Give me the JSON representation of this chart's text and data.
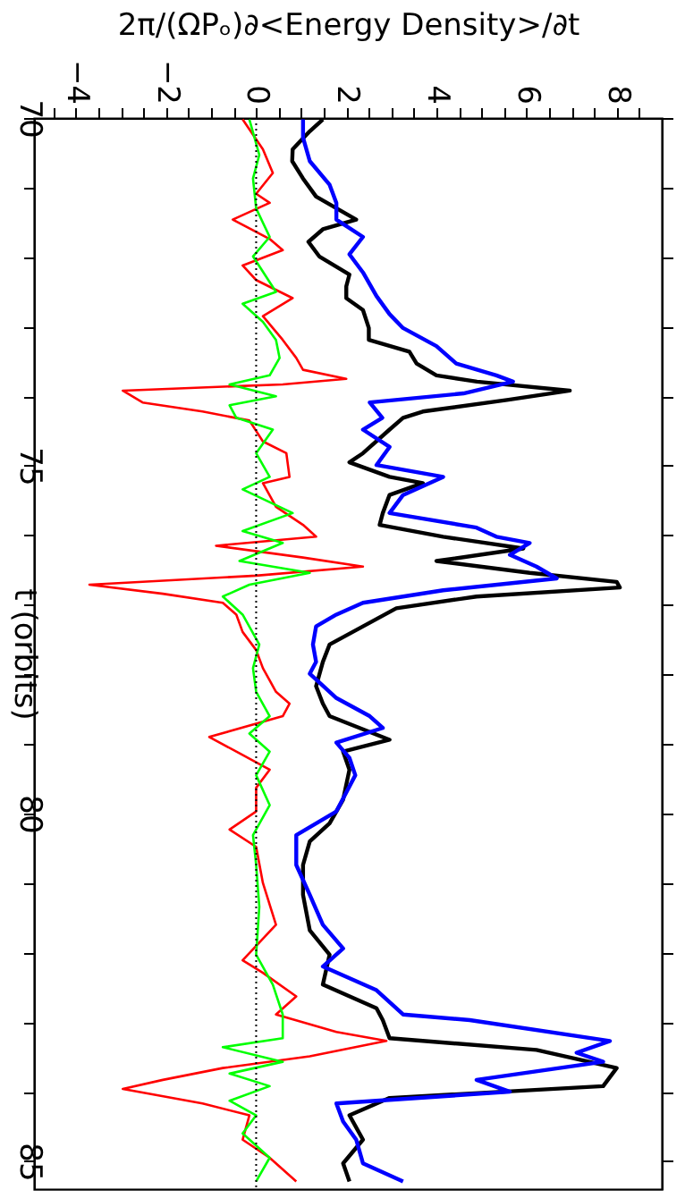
{
  "chart_data": {
    "type": "line",
    "orientation": "horizontal",
    "ylabel": "t (orbits)",
    "xlabel": "2π/(ΩPₒ)∂<Energy Density>/∂t",
    "ylim": [
      85.4,
      70
    ],
    "xlim": [
      -4.93,
      9.0
    ],
    "yticks": [
      70,
      {
        "value": 71,
        "label": null
      },
      {
        "value": 72,
        "label": null
      },
      {
        "value": 73,
        "label": null
      },
      {
        "value": 74,
        "label": null
      },
      75,
      {
        "value": 76,
        "label": null
      },
      {
        "value": 77,
        "label": null
      },
      {
        "value": 78,
        "label": null
      },
      {
        "value": 79,
        "label": null
      },
      80,
      {
        "value": 81,
        "label": null
      },
      {
        "value": 82,
        "label": null
      },
      {
        "value": 83,
        "label": null
      },
      {
        "value": 84,
        "label": null
      },
      85
    ],
    "xticks": [
      {
        "value": -4.5,
        "label": null
      },
      -4,
      {
        "value": -3.5,
        "label": null
      },
      {
        "value": -3,
        "label": null
      },
      {
        "value": -2.5,
        "label": null
      },
      -2,
      {
        "value": -1.5,
        "label": null
      },
      {
        "value": -1,
        "label": null
      },
      {
        "value": -0.5,
        "label": null
      },
      0,
      {
        "value": 0.5,
        "label": null
      },
      {
        "value": 1,
        "label": null
      },
      {
        "value": 1.5,
        "label": null
      },
      2,
      {
        "value": 2.5,
        "label": null
      },
      {
        "value": 3,
        "label": null
      },
      {
        "value": 3.5,
        "label": null
      },
      4,
      {
        "value": 4.5,
        "label": null
      },
      {
        "value": 5,
        "label": null
      },
      {
        "value": 5.5,
        "label": null
      },
      6,
      {
        "value": 6.5,
        "label": null
      },
      {
        "value": 7,
        "label": null
      },
      {
        "value": 7.5,
        "label": null
      },
      8,
      {
        "value": 8.5,
        "label": null
      }
    ],
    "grid": false,
    "legend": false,
    "ref_lines": [
      {
        "axis": "x",
        "value": 0,
        "color": "#000000",
        "line_style": "dotted"
      }
    ],
    "series": [
      {
        "color": "#000000",
        "x": [
          70.02,
          70.19,
          70.45,
          70.62,
          70.87,
          71.13,
          71.46,
          71.6,
          71.78,
          71.99,
          72.25,
          72.42,
          72.59,
          72.76,
          73.02,
          73.19,
          73.36,
          73.53,
          73.7,
          73.79,
          73.92,
          74.05,
          74.22,
          74.31,
          74.48,
          74.82,
          74.95,
          75.16,
          75.25,
          75.42,
          75.68,
          75.85,
          76.02,
          76.19,
          76.37,
          76.54,
          76.67,
          76.75,
          76.88,
          77.05,
          77.31,
          77.57,
          77.82,
          78.17,
          78.42,
          78.6,
          78.94,
          79.11,
          79.37,
          79.8,
          80.14,
          80.4,
          80.74,
          81.17,
          81.68,
          82.03,
          82.46,
          82.8,
          82.97,
          83.23,
          83.4,
          83.66,
          83.92,
          84.09,
          84.34,
          84.69,
          85.03,
          85.29
        ],
        "values": [
          1.48,
          1.19,
          0.81,
          0.8,
          1.04,
          1.33,
          2.22,
          1.48,
          1.16,
          1.4,
          2.07,
          2.0,
          2.0,
          2.37,
          2.5,
          2.5,
          3.4,
          3.56,
          4.0,
          4.9,
          6.96,
          5.6,
          3.7,
          3.26,
          2.96,
          2.37,
          2.07,
          2.96,
          3.7,
          2.96,
          2.81,
          2.74,
          4.15,
          5.93,
          4.0,
          6.07,
          8.0,
          8.07,
          4.89,
          3.11,
          2.37,
          1.63,
          1.48,
          1.33,
          1.48,
          1.63,
          2.96,
          1.93,
          2.07,
          1.93,
          1.63,
          1.19,
          1.04,
          1.04,
          1.19,
          1.63,
          1.48,
          2.67,
          2.81,
          2.96,
          6.22,
          8.0,
          7.7,
          2.96,
          2.07,
          2.37,
          1.93,
          2.07
        ]
      },
      {
        "color": "#0000ff",
        "x": [
          70.02,
          70.28,
          70.62,
          70.96,
          71.22,
          71.46,
          71.71,
          71.96,
          72.22,
          72.56,
          72.82,
          73.02,
          73.28,
          73.53,
          73.7,
          73.79,
          73.96,
          74.09,
          74.31,
          74.48,
          74.73,
          74.99,
          75.16,
          75.42,
          75.68,
          75.89,
          76.02,
          76.11,
          76.28,
          76.45,
          76.62,
          76.79,
          76.97,
          77.14,
          77.31,
          77.57,
          77.82,
          77.99,
          78.34,
          78.6,
          78.77,
          78.98,
          79.2,
          79.45,
          79.97,
          80.31,
          80.74,
          81.17,
          81.6,
          81.94,
          82.2,
          82.54,
          82.89,
          82.97,
          83.27,
          83.44,
          83.57,
          83.83,
          84.0,
          84.17,
          84.43,
          84.69,
          85.03,
          85.29
        ],
        "values": [
          1.04,
          1.04,
          1.19,
          1.63,
          1.78,
          1.78,
          2.37,
          2.07,
          2.37,
          2.67,
          2.96,
          3.26,
          4.0,
          4.44,
          5.33,
          5.7,
          4.6,
          2.52,
          2.8,
          2.37,
          2.96,
          2.67,
          4.15,
          3.26,
          2.96,
          4.89,
          5.33,
          6.07,
          5.63,
          6.22,
          6.67,
          4.15,
          2.37,
          1.78,
          1.33,
          1.26,
          1.33,
          1.19,
          1.78,
          2.52,
          2.81,
          1.78,
          2.07,
          2.2,
          1.78,
          0.89,
          0.89,
          1.19,
          1.48,
          1.93,
          1.48,
          2.67,
          3.26,
          4.74,
          7.85,
          7.11,
          7.7,
          4.89,
          5.63,
          1.78,
          1.93,
          2.22,
          2.37,
          3.26
        ]
      },
      {
        "color": "#ff0000",
        "x": [
          70.02,
          70.45,
          70.79,
          71.09,
          71.22,
          71.46,
          71.74,
          71.9,
          72.12,
          72.33,
          72.59,
          72.85,
          73.19,
          73.45,
          73.62,
          73.75,
          73.83,
          73.92,
          74.09,
          74.22,
          74.35,
          74.65,
          74.82,
          75.16,
          75.25,
          75.59,
          75.85,
          76.02,
          76.15,
          76.32,
          76.45,
          76.58,
          76.71,
          76.84,
          76.97,
          77.14,
          77.39,
          77.65,
          77.91,
          78.25,
          78.42,
          78.6,
          78.9,
          79.11,
          79.37,
          79.63,
          79.97,
          80.23,
          80.48,
          81.0,
          81.6,
          82.11,
          82.29,
          82.63,
          82.89,
          83.14,
          83.27,
          83.49,
          83.66,
          83.83,
          83.96,
          84.17,
          84.34,
          84.69,
          84.95,
          85.29
        ],
        "values": [
          -0.3,
          0.15,
          0.37,
          0,
          0.3,
          -0.52,
          0.3,
          0.59,
          -0.3,
          0,
          0.81,
          0.15,
          0.59,
          0.89,
          1.04,
          2.0,
          0.59,
          -2.96,
          -2.52,
          -1.19,
          -0.15,
          0.15,
          0.67,
          0.74,
          0.15,
          0.44,
          1.04,
          1.33,
          -0.89,
          1.04,
          2.37,
          0,
          -3.7,
          -2.07,
          -0.74,
          -0.44,
          -0.3,
          0,
          0.15,
          0.44,
          0.74,
          0.59,
          -1.04,
          -0.44,
          0.3,
          0,
          0,
          -0.59,
          0,
          0.15,
          0.44,
          -0.3,
          0.15,
          0.89,
          0.44,
          1.78,
          2.89,
          1.19,
          -0.74,
          -2.07,
          -2.96,
          -1.19,
          -0.15,
          -0.3,
          0.3,
          0.89
        ]
      },
      {
        "color": "#00ff00",
        "x": [
          70.02,
          70.53,
          70.87,
          71.3,
          71.71,
          71.99,
          72.5,
          72.67,
          72.93,
          73.19,
          73.45,
          73.7,
          73.83,
          74.0,
          74.13,
          74.31,
          74.48,
          74.82,
          75.16,
          75.34,
          75.68,
          75.94,
          76.11,
          76.37,
          76.54,
          76.71,
          76.88,
          77.14,
          77.57,
          77.91,
          78.25,
          78.6,
          78.85,
          79.11,
          79.45,
          79.88,
          80.31,
          80.74,
          81.34,
          82.03,
          82.46,
          82.89,
          83.23,
          83.36,
          83.57,
          83.74,
          83.92,
          84.13,
          84.34,
          84.6,
          84.95,
          85.29
        ],
        "values": [
          -0.15,
          0.07,
          -0.07,
          0,
          0.3,
          -0.07,
          0.44,
          -0.3,
          0.15,
          0.44,
          0.52,
          0.3,
          -0.59,
          0.44,
          -0.59,
          -0.44,
          0.37,
          0,
          0.3,
          -0.3,
          0.81,
          -0.3,
          0.59,
          -0.37,
          1.19,
          -0.15,
          -0.74,
          -0.3,
          0.07,
          -0.07,
          0,
          0.3,
          -0.15,
          0.3,
          0,
          0.3,
          -0.07,
          0,
          0.07,
          0,
          0.37,
          0.59,
          0.59,
          -0.74,
          0.59,
          -0.59,
          0.3,
          -0.59,
          0,
          -0.3,
          0.3,
          0
        ]
      }
    ]
  }
}
